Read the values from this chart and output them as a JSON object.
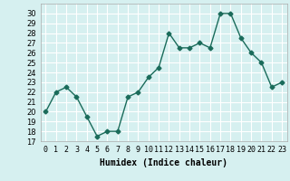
{
  "x": [
    0,
    1,
    2,
    3,
    4,
    5,
    6,
    7,
    8,
    9,
    10,
    11,
    12,
    13,
    14,
    15,
    16,
    17,
    18,
    19,
    20,
    21,
    22,
    23
  ],
  "y": [
    20,
    22,
    22.5,
    21.5,
    19.5,
    17.5,
    18,
    18,
    21.5,
    22,
    23.5,
    24.5,
    28,
    26.5,
    26.5,
    27,
    26.5,
    30,
    30,
    27.5,
    26,
    25,
    22.5,
    23
  ],
  "line_color": "#1a6b5a",
  "marker": "D",
  "marker_size": 2.5,
  "background_color": "#d6f0f0",
  "grid_color": "#ffffff",
  "xlabel": "Humidex (Indice chaleur)",
  "ylim": [
    17,
    31
  ],
  "xlim": [
    -0.5,
    23.5
  ],
  "yticks": [
    17,
    18,
    19,
    20,
    21,
    22,
    23,
    24,
    25,
    26,
    27,
    28,
    29,
    30
  ],
  "xtick_labels": [
    "0",
    "1",
    "2",
    "3",
    "4",
    "5",
    "6",
    "7",
    "8",
    "9",
    "10",
    "11",
    "12",
    "13",
    "14",
    "15",
    "16",
    "17",
    "18",
    "19",
    "20",
    "21",
    "22",
    "23"
  ],
  "label_fontsize": 7,
  "tick_fontsize": 6
}
